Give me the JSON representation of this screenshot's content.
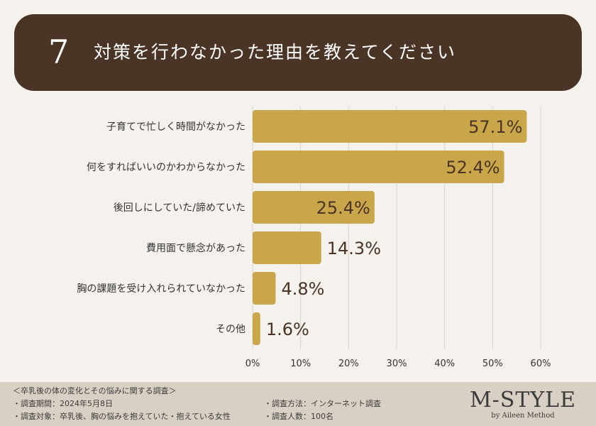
{
  "header": {
    "number": "7",
    "title": "対策を行わなかった理由を教えてください"
  },
  "colors": {
    "header_bg": "#4a3425",
    "bar": "#c9a64a",
    "page_bg": "#f5f1ed",
    "footer_bg": "#d9d0c5"
  },
  "chart_data": {
    "type": "bar",
    "orientation": "horizontal",
    "categories": [
      "子育てで忙しく時間がなかった",
      "何をすればいいのかわからなかった",
      "後回しにしていた/諦めていた",
      "費用面で懸念があった",
      "胸の課題を受け入れられていなかった",
      "その他"
    ],
    "values": [
      57.1,
      52.4,
      25.4,
      14.3,
      4.8,
      1.6
    ],
    "value_labels": [
      "57.1%",
      "52.4%",
      "25.4%",
      "14.3%",
      "4.8%",
      "1.6%"
    ],
    "xlim": [
      0,
      60
    ],
    "ticks": [
      0,
      10,
      20,
      30,
      40,
      50,
      60
    ],
    "tick_labels": [
      "0%",
      "10%",
      "20%",
      "30%",
      "40%",
      "50%",
      "60%"
    ],
    "grid": true
  },
  "footer": {
    "survey_title": "＜卒乳後の体の変化とその悩みに関する調査＞",
    "period": "・調査期間：2024年5月8日",
    "target": "・調査対象：卒乳後、胸の悩みを抱えていた・抱えている女性",
    "method": "・調査方法：インターネット調査",
    "respondents": "・調査人数：100名",
    "brand": "M-STYLE",
    "brand_sub": "by Aileen Method"
  }
}
